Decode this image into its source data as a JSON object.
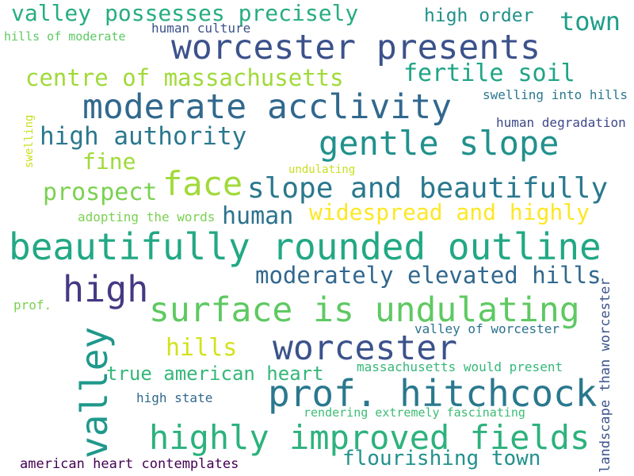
{
  "words": [
    {
      "text": "valley possesses precisely",
      "color": "#27ad81"
    },
    {
      "text": "high order",
      "color": "#21918c"
    },
    {
      "text": "town",
      "color": "#1f9e89"
    },
    {
      "text": "hills of moderate",
      "color": "#5ec962"
    },
    {
      "text": "human culture",
      "color": "#3b528b"
    },
    {
      "text": "worcester presents",
      "color": "#3b528b"
    },
    {
      "text": "centre of massachusetts",
      "color": "#a0da39"
    },
    {
      "text": "fertile soil",
      "color": "#20a486"
    },
    {
      "text": "moderate acclivity",
      "color": "#31688e"
    },
    {
      "text": "swelling into hills",
      "color": "#2a788e"
    },
    {
      "text": "swelling",
      "color": "#c8e020"
    },
    {
      "text": "human degradation",
      "color": "#3e4989"
    },
    {
      "text": "high authority",
      "color": "#2a788e"
    },
    {
      "text": "gentle slope",
      "color": "#21918c"
    },
    {
      "text": "fine",
      "color": "#a0da39"
    },
    {
      "text": "undulating",
      "color": "#c8e020"
    },
    {
      "text": "face",
      "color": "#a0da39"
    },
    {
      "text": "prospect",
      "color": "#7ad151"
    },
    {
      "text": "slope and beautifully",
      "color": "#2a788e"
    },
    {
      "text": "widespread and highly",
      "color": "#fde725"
    },
    {
      "text": "adopting the words",
      "color": "#7ad151"
    },
    {
      "text": "human",
      "color": "#2c728e"
    },
    {
      "text": "beautifully rounded outline",
      "color": "#22a884"
    },
    {
      "text": "high",
      "color": "#443983"
    },
    {
      "text": "moderately elevated hills",
      "color": "#31688e"
    },
    {
      "text": "landscape than worcester",
      "color": "#3b528b"
    },
    {
      "text": "prof.",
      "color": "#7ad151"
    },
    {
      "text": "surface is undulating",
      "color": "#5ec962"
    },
    {
      "text": "valley",
      "color": "#1f988b"
    },
    {
      "text": "valley of worcester",
      "color": "#2c728e"
    },
    {
      "text": "hills",
      "color": "#d2e21b"
    },
    {
      "text": "worcester",
      "color": "#3b528b"
    },
    {
      "text": "true american heart",
      "color": "#35b779"
    },
    {
      "text": "massachusetts would present",
      "color": "#35b779"
    },
    {
      "text": "high state",
      "color": "#31688e"
    },
    {
      "text": "prof. hitchcock",
      "color": "#2a788e"
    },
    {
      "text": "rendering extremely fascinating",
      "color": "#3dbc74"
    },
    {
      "text": "highly improved fields",
      "color": "#2db27d"
    },
    {
      "text": "flourishing town",
      "color": "#21918c"
    },
    {
      "text": "american heart contemplates",
      "color": "#440154"
    }
  ]
}
